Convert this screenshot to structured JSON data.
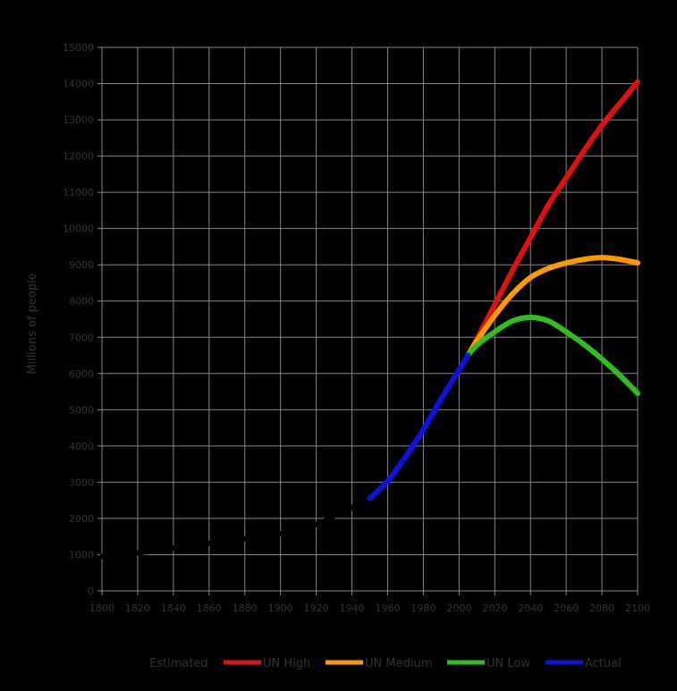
{
  "chart_data": {
    "type": "line",
    "title": "",
    "xlabel": "",
    "ylabel": "Millions of people",
    "xlim": [
      1800,
      2100
    ],
    "ylim": [
      0,
      15000
    ],
    "x_ticks": [
      1800,
      1820,
      1840,
      1860,
      1880,
      1900,
      1920,
      1940,
      1960,
      1980,
      2000,
      2020,
      2040,
      2060,
      2080,
      2100
    ],
    "y_ticks": [
      0,
      1000,
      2000,
      3000,
      4000,
      5000,
      6000,
      7000,
      8000,
      9000,
      10000,
      11000,
      12000,
      13000,
      14000,
      15000
    ],
    "grid": true,
    "legend_position": "bottom",
    "background": "#000000",
    "grid_color": "#888888",
    "series": [
      {
        "name": "Estimated",
        "color": "#000000",
        "points": [
          [
            1800,
            950
          ],
          [
            1820,
            1050
          ],
          [
            1840,
            1180
          ],
          [
            1860,
            1310
          ],
          [
            1880,
            1440
          ],
          [
            1900,
            1580
          ],
          [
            1920,
            1830
          ],
          [
            1930,
            2070
          ],
          [
            1940,
            2300
          ],
          [
            1950,
            2550
          ]
        ]
      },
      {
        "name": "UN High",
        "color": "#dd1111",
        "points": [
          [
            2005,
            6500
          ],
          [
            2010,
            6950
          ],
          [
            2020,
            7900
          ],
          [
            2030,
            8850
          ],
          [
            2040,
            9750
          ],
          [
            2050,
            10650
          ],
          [
            2060,
            11400
          ],
          [
            2070,
            12150
          ],
          [
            2080,
            12850
          ],
          [
            2090,
            13450
          ],
          [
            2100,
            14050
          ]
        ]
      },
      {
        "name": "UN Medium",
        "color": "#ff9900",
        "points": [
          [
            2005,
            6500
          ],
          [
            2010,
            6900
          ],
          [
            2020,
            7600
          ],
          [
            2030,
            8200
          ],
          [
            2040,
            8650
          ],
          [
            2050,
            8900
          ],
          [
            2060,
            9050
          ],
          [
            2070,
            9150
          ],
          [
            2080,
            9200
          ],
          [
            2090,
            9150
          ],
          [
            2100,
            9050
          ]
        ]
      },
      {
        "name": "UN Low",
        "color": "#33bb22",
        "points": [
          [
            2005,
            6500
          ],
          [
            2010,
            6780
          ],
          [
            2020,
            7150
          ],
          [
            2030,
            7450
          ],
          [
            2040,
            7550
          ],
          [
            2050,
            7450
          ],
          [
            2060,
            7150
          ],
          [
            2070,
            6800
          ],
          [
            2080,
            6400
          ],
          [
            2090,
            5950
          ],
          [
            2100,
            5450
          ]
        ]
      },
      {
        "name": "Actual",
        "color": "#1111dd",
        "points": [
          [
            1950,
            2550
          ],
          [
            1960,
            3030
          ],
          [
            1970,
            3700
          ],
          [
            1980,
            4450
          ],
          [
            1990,
            5300
          ],
          [
            2000,
            6100
          ],
          [
            2005,
            6500
          ]
        ]
      }
    ]
  }
}
